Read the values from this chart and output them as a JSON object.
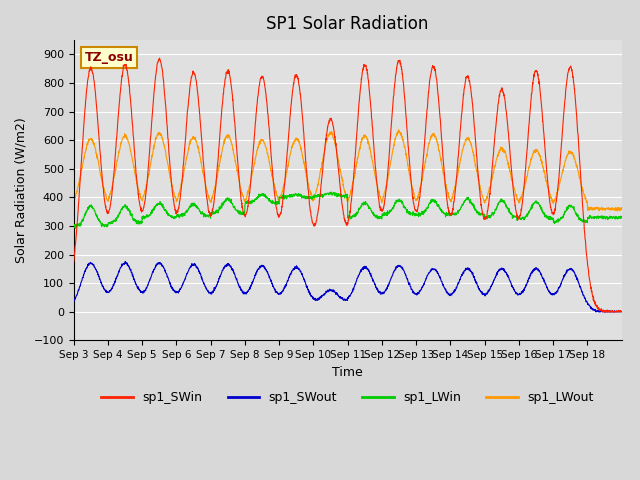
{
  "title": "SP1 Solar Radiation",
  "xlabel": "Time",
  "ylabel": "Solar Radiation (W/m2)",
  "ylim": [
    -100,
    950
  ],
  "yticks": [
    -100,
    0,
    100,
    200,
    300,
    400,
    500,
    600,
    700,
    800,
    900
  ],
  "tz_label": "TZ_osu",
  "bg_color": "#e0e0e0",
  "line_colors": {
    "SWin": "#ff2200",
    "SWout": "#0000cc",
    "LWin": "#00cc00",
    "LWout": "#ff9900"
  },
  "legend_labels": [
    "sp1_SWin",
    "sp1_SWout",
    "sp1_LWin",
    "sp1_LWout"
  ],
  "x_tick_labels": [
    "Sep 3",
    "Sep 4",
    "Sep 5",
    "Sep 6",
    "Sep 7",
    "Sep 8",
    "Sep 9",
    "Sep 10",
    "Sep 11",
    "Sep 12",
    "Sep 13",
    "Sep 14",
    "Sep 15",
    "Sep 16",
    "Sep 17",
    "Sep 18"
  ],
  "n_days": 16,
  "pts_per_day": 144,
  "SWin_peaks": [
    850,
    860,
    880,
    835,
    840,
    820,
    825,
    670,
    860,
    875,
    855,
    820,
    775,
    840,
    855,
    0
  ],
  "SWout_peaks": [
    170,
    170,
    170,
    165,
    165,
    160,
    155,
    75,
    155,
    160,
    150,
    150,
    150,
    150,
    150,
    0
  ],
  "LWin_base": [
    300,
    310,
    330,
    335,
    345,
    380,
    400,
    405,
    330,
    340,
    340,
    340,
    330,
    325,
    315,
    330
  ],
  "LWin_peak_add": [
    70,
    60,
    50,
    40,
    50,
    30,
    10,
    10,
    50,
    50,
    50,
    55,
    60,
    60,
    55,
    0
  ],
  "LWout_base": [
    355,
    355,
    355,
    350,
    350,
    355,
    355,
    355,
    350,
    350,
    350,
    350,
    355,
    355,
    355,
    360
  ],
  "LWout_peak_add": [
    250,
    260,
    270,
    260,
    265,
    245,
    250,
    270,
    265,
    280,
    270,
    255,
    215,
    210,
    205,
    0
  ]
}
